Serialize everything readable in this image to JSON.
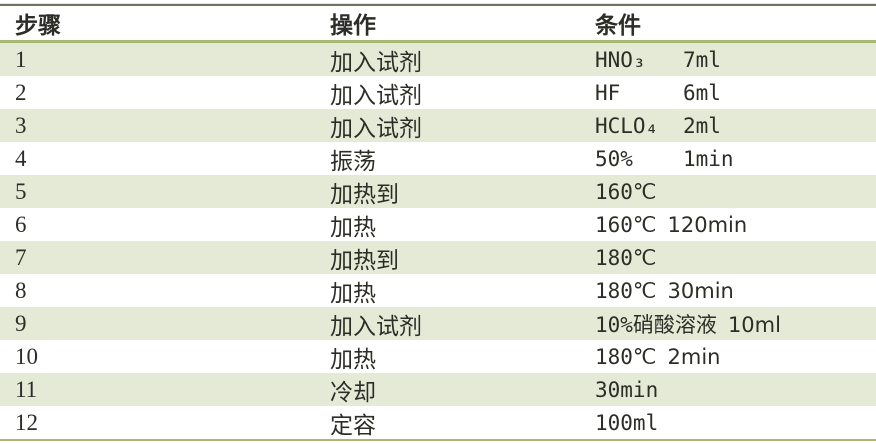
{
  "table": {
    "headers": [
      "步骤",
      "操作",
      "条件"
    ],
    "rows": [
      {
        "step": "1",
        "operation": "加入试剂",
        "condition_main": "HNO₃",
        "condition_value": "7ml",
        "condition_note": ""
      },
      {
        "step": "2",
        "operation": "加入试剂",
        "condition_main": "HF",
        "condition_value": "6ml",
        "condition_note": ""
      },
      {
        "step": "3",
        "operation": "加入试剂",
        "condition_main": "HCLO₄",
        "condition_value": "2ml",
        "condition_note": ""
      },
      {
        "step": "4",
        "operation": "振荡",
        "condition_main": "50%",
        "condition_value": "1min",
        "condition_note": ""
      },
      {
        "step": "5",
        "operation": "加热到",
        "condition_main": "160℃",
        "condition_value": "",
        "condition_note": ""
      },
      {
        "step": "6",
        "operation": "加热",
        "condition_main": "160℃",
        "condition_value": "",
        "condition_note": "120min"
      },
      {
        "step": "7",
        "operation": "加热到",
        "condition_main": "180℃",
        "condition_value": "",
        "condition_note": ""
      },
      {
        "step": "8",
        "operation": "加热",
        "condition_main": "180℃",
        "condition_value": "",
        "condition_note": "30min"
      },
      {
        "step": "9",
        "operation": "加入试剂",
        "condition_main": "10%硝酸溶液",
        "condition_value": "",
        "condition_note": "10ml"
      },
      {
        "step": "10",
        "operation": "加热",
        "condition_main": "180℃",
        "condition_value": "",
        "condition_note": "2min"
      },
      {
        "step": "11",
        "operation": "冷却",
        "condition_main": "30min",
        "condition_value": "",
        "condition_note": ""
      },
      {
        "step": "12",
        "operation": "定容",
        "condition_main": "100ml",
        "condition_value": "",
        "condition_note": ""
      }
    ]
  },
  "colors": {
    "stripe_row": "#e5ead6",
    "divider_olive": "#a9b873",
    "top_border_dark": "#71715c",
    "text": "#2d2d28"
  }
}
